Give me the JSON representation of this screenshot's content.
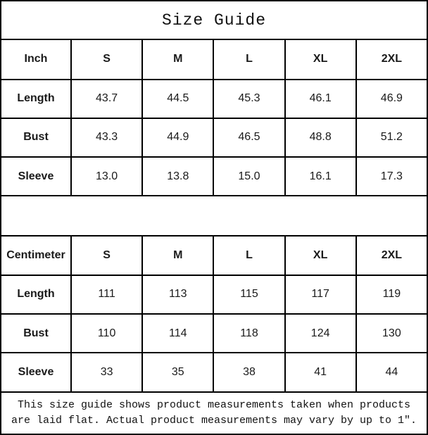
{
  "title": "Size Guide",
  "tables": [
    {
      "unit_label": "Inch",
      "sizes": [
        "S",
        "M",
        "L",
        "XL",
        "2XL"
      ],
      "rows": [
        {
          "label": "Length",
          "values": [
            "43.7",
            "44.5",
            "45.3",
            "46.1",
            "46.9"
          ]
        },
        {
          "label": "Bust",
          "values": [
            "43.3",
            "44.9",
            "46.5",
            "48.8",
            "51.2"
          ]
        },
        {
          "label": "Sleeve",
          "values": [
            "13.0",
            "13.8",
            "15.0",
            "16.1",
            "17.3"
          ]
        }
      ]
    },
    {
      "unit_label": "Centimeter",
      "sizes": [
        "S",
        "M",
        "L",
        "XL",
        "2XL"
      ],
      "rows": [
        {
          "label": "Length",
          "values": [
            "111",
            "113",
            "115",
            "117",
            "119"
          ]
        },
        {
          "label": "Bust",
          "values": [
            "110",
            "114",
            "118",
            "124",
            "130"
          ]
        },
        {
          "label": "Sleeve",
          "values": [
            "33",
            "35",
            "38",
            "41",
            "44"
          ]
        }
      ]
    }
  ],
  "footnote": "This size guide shows product measurements taken when products are laid flat. Actual product measurements may vary by up to 1″."
}
